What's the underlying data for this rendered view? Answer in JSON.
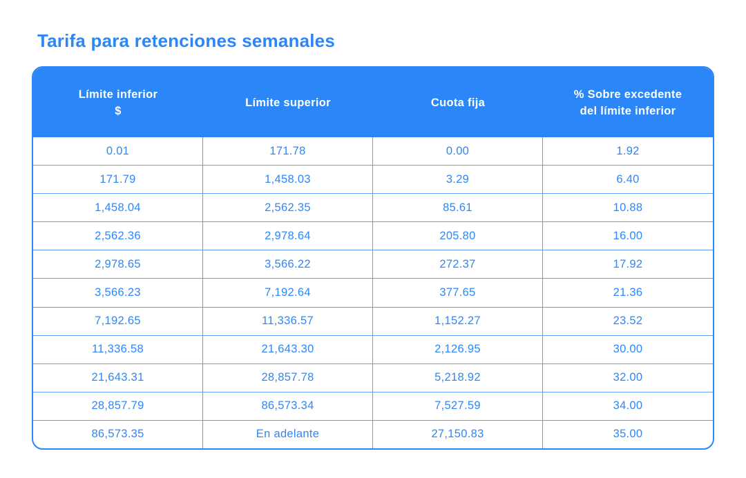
{
  "page_title": "Tarifa para retenciones semanales",
  "colors": {
    "primary_blue": "#2b86f8",
    "grid_line": "#5e9df9",
    "cell_text": "#2e87f8",
    "header_text": "#ffffff",
    "background": "#ffffff"
  },
  "table": {
    "columns": [
      {
        "lines": [
          "Límite inferior",
          "$"
        ]
      },
      {
        "lines": [
          "Límite superior"
        ]
      },
      {
        "lines": [
          "Cuota fija"
        ]
      },
      {
        "lines": [
          "% Sobre excedente",
          "del límite inferior"
        ]
      }
    ],
    "rows": [
      [
        "0.01",
        "171.78",
        "0.00",
        "1.92"
      ],
      [
        "171.79",
        "1,458.03",
        "3.29",
        "6.40"
      ],
      [
        "1,458.04",
        "2,562.35",
        "85.61",
        "10.88"
      ],
      [
        "2,562.36",
        "2,978.64",
        "205.80",
        "16.00"
      ],
      [
        "2,978.65",
        "3,566.22",
        "272.37",
        "17.92"
      ],
      [
        "3,566.23",
        "7,192.64",
        "377.65",
        "21.36"
      ],
      [
        "7,192.65",
        "11,336.57",
        "1,152.27",
        "23.52"
      ],
      [
        "11,336.58",
        "21,643.30",
        "2,126.95",
        "30.00"
      ],
      [
        "21,643.31",
        "28,857.78",
        "5,218.92",
        "32.00"
      ],
      [
        "28,857.79",
        "86,573.34",
        "7,527.59",
        "34.00"
      ],
      [
        "86,573.35",
        "En adelante",
        "27,150.83",
        "35.00"
      ]
    ]
  }
}
